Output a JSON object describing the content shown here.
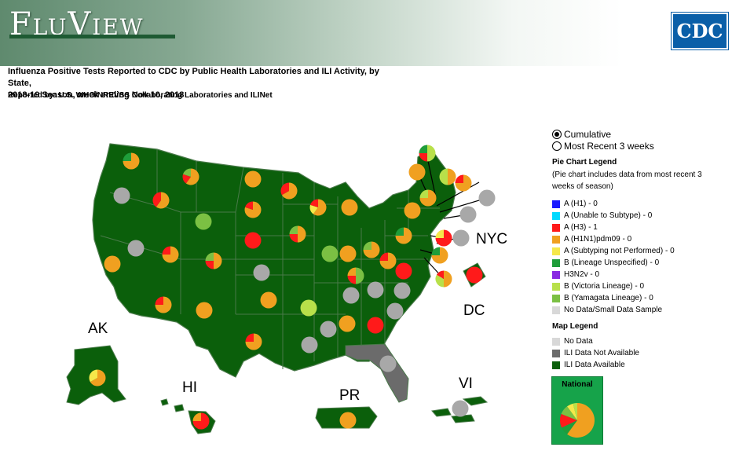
{
  "header": {
    "app_name": "FluView",
    "agency_logo": "CDC",
    "title_line1": "Influenza Positive Tests Reported to CDC by Public Health Laboratories and ILI Activity, by State,",
    "title_line2": "2018-19 Season, week ending Nov 10, 2018",
    "subtitle": "Reported by: U.S. WHO/NREVSS Collaborating Laboratories and ILINet"
  },
  "view_options": [
    {
      "label": "Cumulative",
      "selected": true
    },
    {
      "label": "Most Recent 3 weeks",
      "selected": false
    }
  ],
  "pie_legend": {
    "heading": "Pie Chart Legend",
    "note": "(Pie chart includes data from most recent 3 weeks of season)",
    "items": [
      {
        "label": "A (H1) - 0",
        "color": "#1a1aff"
      },
      {
        "label": "A (Unable to Subtype) - 0",
        "color": "#00d9ff"
      },
      {
        "label": "A (H3) - 1",
        "color": "#ff1a1a"
      },
      {
        "label": "A (H1N1)pdm09 - 0",
        "color": "#f0a020"
      },
      {
        "label": "A (Subtyping not Performed) - 0",
        "color": "#f5e84a"
      },
      {
        "label": "B (Lineage Unspecified) - 0",
        "color": "#1f9d3a"
      },
      {
        "label": "H3N2v - 0",
        "color": "#8a2be2"
      },
      {
        "label": "B (Victoria Lineage) - 0",
        "color": "#b8e04a"
      },
      {
        "label": "B (Yamagata Lineage) - 0",
        "color": "#7bc043"
      },
      {
        "label": "No Data/Small Data Sample",
        "color": "#d8d8d8"
      }
    ]
  },
  "map_legend": {
    "heading": "Map Legend",
    "items": [
      {
        "label": "No Data",
        "color": "#d8d8d8"
      },
      {
        "label": "ILI Data Not Available",
        "color": "#6b6b6b"
      },
      {
        "label": "ILI Data Available",
        "color": "#0b5f0b"
      }
    ]
  },
  "national": {
    "label": "National"
  },
  "region_labels": {
    "ak": "AK",
    "hi": "HI",
    "pr": "PR",
    "vi": "VI",
    "dc": "DC",
    "nyc": "NYC"
  },
  "colors": {
    "ili_available": "#0b5f0b",
    "ili_not_available": "#6b6b6b",
    "state_border": "#4a7a4a"
  }
}
